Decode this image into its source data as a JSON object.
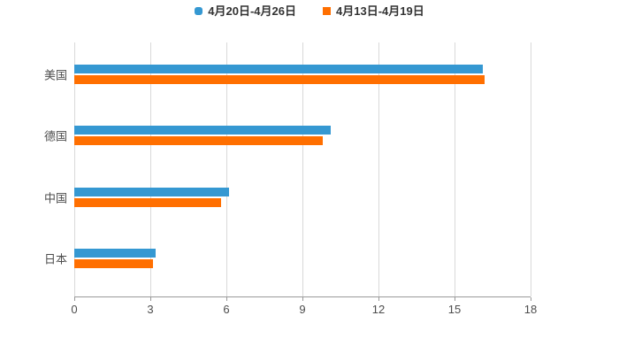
{
  "chart_data": {
    "type": "bar",
    "orientation": "horizontal",
    "title": "",
    "categories": [
      "美国",
      "德国",
      "中国",
      "日本"
    ],
    "series": [
      {
        "name": "4月20日-4月26日",
        "color": "#3598d2",
        "marker_shape": "rounded-square",
        "values": [
          16.1,
          10.1,
          6.1,
          3.2
        ]
      },
      {
        "name": "4月13日-4月19日",
        "color": "#ff6f00",
        "marker_shape": "square",
        "values": [
          16.2,
          9.8,
          5.8,
          3.1
        ]
      }
    ],
    "xlabel": "",
    "ylabel": "",
    "xlim": [
      0,
      18
    ],
    "xticks": [
      0,
      3,
      6,
      9,
      12,
      15,
      18
    ],
    "grid": true,
    "legend_position": "top",
    "colors": {
      "background": "#ffffff",
      "gridline": "#d9d9d9",
      "axis_line": "#999999",
      "tick_label": "#4d4d4d",
      "category_label": "#4d4d4d",
      "legend_text": "#333333"
    }
  }
}
